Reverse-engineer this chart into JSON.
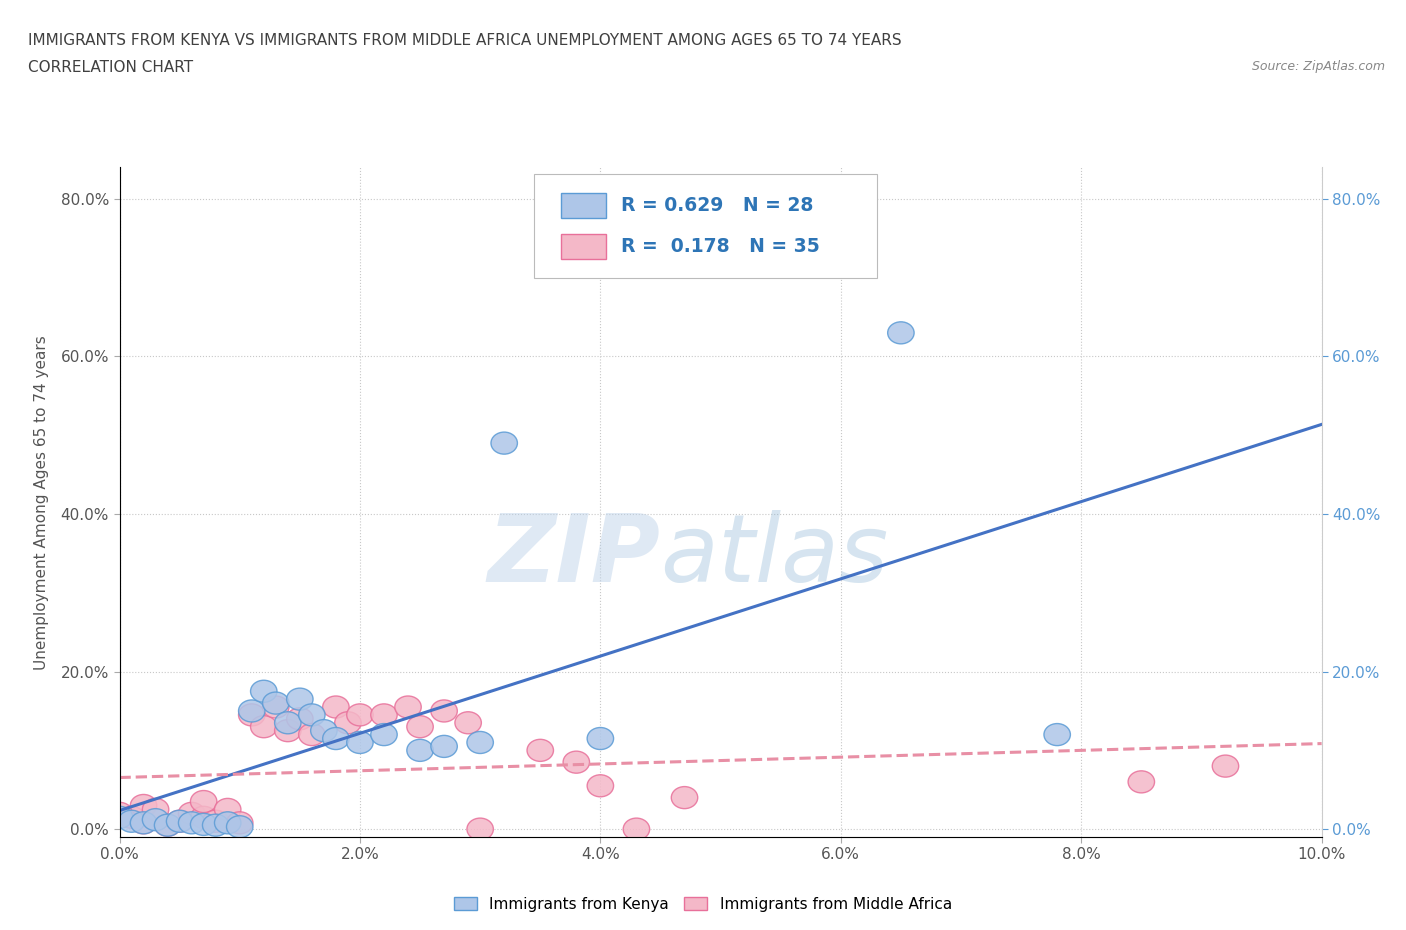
{
  "title_line1": "IMMIGRANTS FROM KENYA VS IMMIGRANTS FROM MIDDLE AFRICA UNEMPLOYMENT AMONG AGES 65 TO 74 YEARS",
  "title_line2": "CORRELATION CHART",
  "source": "Source: ZipAtlas.com",
  "ylabel": "Unemployment Among Ages 65 to 74 years",
  "xlim": [
    0.0,
    0.1
  ],
  "ylim": [
    -0.01,
    0.84
  ],
  "xticks": [
    0.0,
    0.02,
    0.04,
    0.06,
    0.08,
    0.1
  ],
  "yticks": [
    0.0,
    0.2,
    0.4,
    0.6,
    0.8
  ],
  "xtick_labels": [
    "0.0%",
    "2.0%",
    "4.0%",
    "6.0%",
    "8.0%",
    "10.0%"
  ],
  "ytick_labels": [
    "0.0%",
    "20.0%",
    "40.0%",
    "60.0%",
    "80.0%"
  ],
  "kenya_color": "#aec6e8",
  "kenya_edge_color": "#5b9bd5",
  "middle_africa_color": "#f4b8c8",
  "middle_africa_edge_color": "#e8709a",
  "kenya_R": 0.629,
  "kenya_N": 28,
  "middle_africa_R": 0.178,
  "middle_africa_N": 35,
  "kenya_line_color": "#4472c4",
  "middle_africa_line_color": "#e88fa5",
  "watermark": "ZIPatlas",
  "background_color": "#ffffff",
  "grid_color": "#c8c8c8",
  "title_color": "#404040",
  "legend_R_color": "#2e75b6",
  "right_axis_color": "#5b9bd5",
  "kenya_scatter_x": [
    0.0,
    0.001,
    0.002,
    0.003,
    0.004,
    0.005,
    0.006,
    0.007,
    0.008,
    0.009,
    0.01,
    0.011,
    0.012,
    0.013,
    0.014,
    0.015,
    0.016,
    0.017,
    0.018,
    0.02,
    0.022,
    0.025,
    0.027,
    0.03,
    0.032,
    0.04,
    0.065,
    0.078
  ],
  "kenya_scatter_y": [
    0.015,
    0.01,
    0.008,
    0.012,
    0.005,
    0.01,
    0.008,
    0.006,
    0.005,
    0.008,
    0.003,
    0.15,
    0.175,
    0.16,
    0.135,
    0.165,
    0.145,
    0.125,
    0.115,
    0.11,
    0.12,
    0.1,
    0.105,
    0.11,
    0.49,
    0.115,
    0.63,
    0.12
  ],
  "ma_scatter_x": [
    0.0,
    0.001,
    0.002,
    0.002,
    0.003,
    0.004,
    0.005,
    0.006,
    0.007,
    0.007,
    0.008,
    0.009,
    0.01,
    0.011,
    0.012,
    0.013,
    0.014,
    0.015,
    0.016,
    0.018,
    0.019,
    0.02,
    0.022,
    0.024,
    0.025,
    0.027,
    0.029,
    0.03,
    0.035,
    0.038,
    0.04,
    0.043,
    0.047,
    0.085,
    0.092
  ],
  "ma_scatter_y": [
    0.02,
    0.015,
    0.008,
    0.03,
    0.025,
    0.005,
    0.01,
    0.02,
    0.015,
    0.035,
    0.01,
    0.025,
    0.008,
    0.145,
    0.13,
    0.155,
    0.125,
    0.14,
    0.12,
    0.155,
    0.135,
    0.145,
    0.145,
    0.155,
    0.13,
    0.15,
    0.135,
    0.0,
    0.1,
    0.085,
    0.055,
    0.0,
    0.04,
    0.06,
    0.08
  ]
}
